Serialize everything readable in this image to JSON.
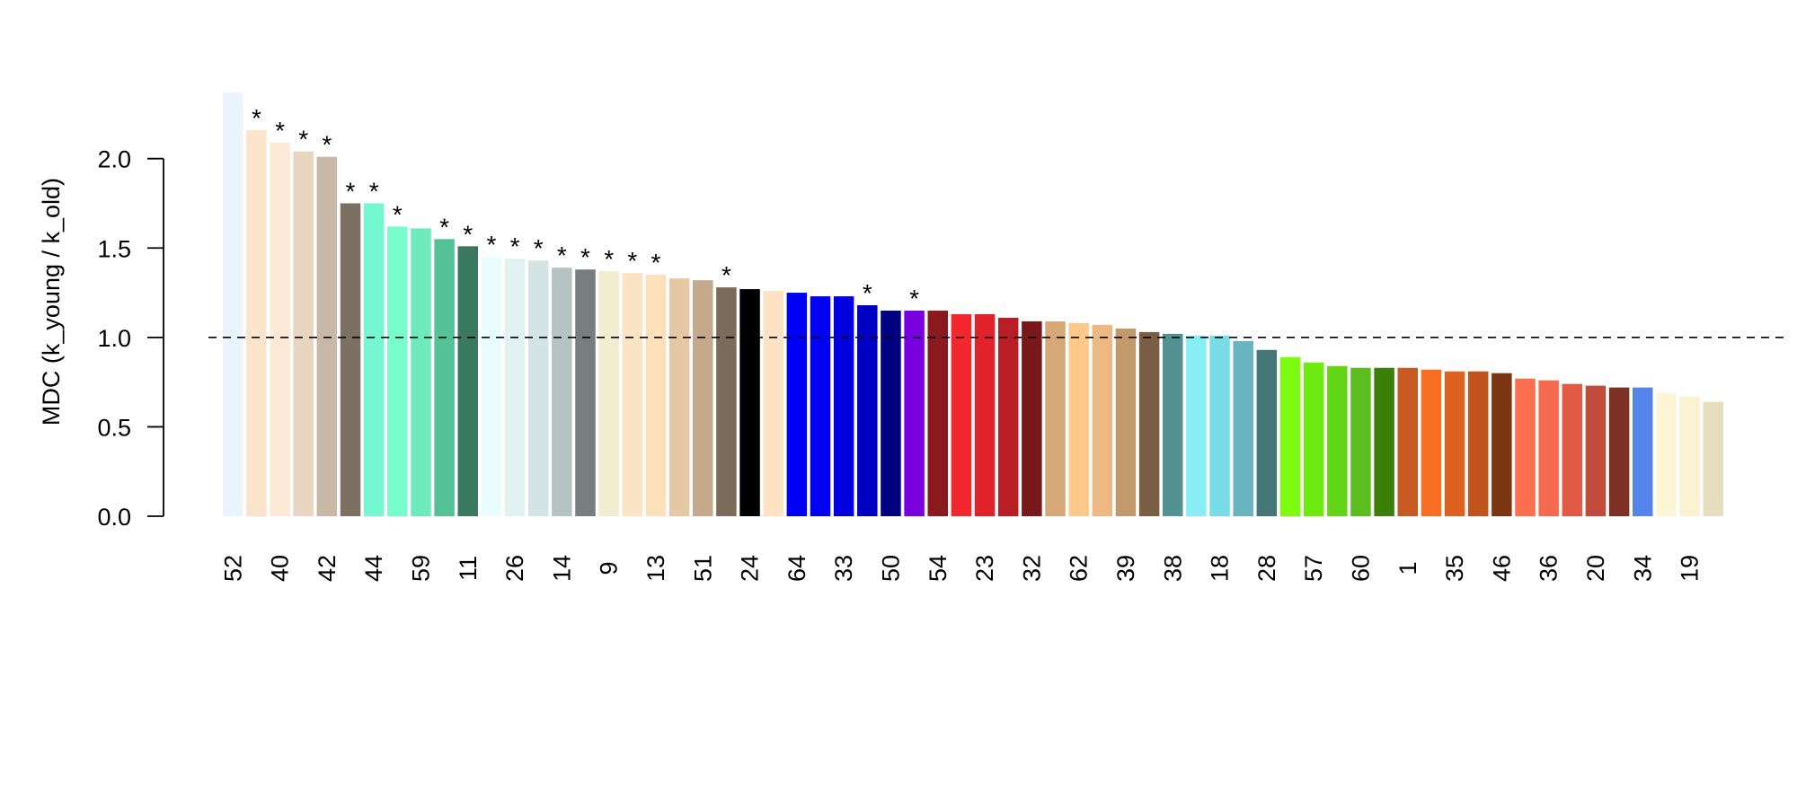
{
  "chart_data": {
    "type": "bar",
    "ylabel": "MDC (k_young / k_old)",
    "ylim": [
      0,
      2.35
    ],
    "yticks": [
      "0.0",
      "0.5",
      "1.0",
      "1.5",
      "2.0"
    ],
    "reference_line": {
      "y": 1.0,
      "style": "dashed"
    },
    "grid": false,
    "significance_marker": "*",
    "bars": [
      {
        "label": "52",
        "value": 2.37,
        "color": "#EAF4FD",
        "sig": false
      },
      {
        "label": "",
        "value": 2.16,
        "color": "#FCE4CA",
        "sig": true
      },
      {
        "label": "40",
        "value": 2.09,
        "color": "#FDEAD6",
        "sig": true
      },
      {
        "label": "",
        "value": 2.04,
        "color": "#E8D5C0",
        "sig": true
      },
      {
        "label": "42",
        "value": 2.01,
        "color": "#C9B8A5",
        "sig": true
      },
      {
        "label": "",
        "value": 1.75,
        "color": "#7C7063",
        "sig": true
      },
      {
        "label": "44",
        "value": 1.75,
        "color": "#73F8CF",
        "sig": true
      },
      {
        "label": "",
        "value": 1.62,
        "color": "#77FCCB",
        "sig": true
      },
      {
        "label": "59",
        "value": 1.61,
        "color": "#6DEBBF",
        "sig": false
      },
      {
        "label": "",
        "value": 1.55,
        "color": "#55C196",
        "sig": true
      },
      {
        "label": "11",
        "value": 1.51,
        "color": "#3A7860",
        "sig": true
      },
      {
        "label": "",
        "value": 1.45,
        "color": "#EAFDFE",
        "sig": true
      },
      {
        "label": "26",
        "value": 1.44,
        "color": "#E2F2F3",
        "sig": true
      },
      {
        "label": "",
        "value": 1.43,
        "color": "#D4E4E5",
        "sig": true
      },
      {
        "label": "14",
        "value": 1.39,
        "color": "#B5C3C3",
        "sig": true
      },
      {
        "label": "",
        "value": 1.38,
        "color": "#777E7E",
        "sig": true
      },
      {
        "label": "9",
        "value": 1.37,
        "color": "#F2ECD1",
        "sig": true
      },
      {
        "label": "",
        "value": 1.36,
        "color": "#FBE3C5",
        "sig": true
      },
      {
        "label": "13",
        "value": 1.35,
        "color": "#FDDFBA",
        "sig": true
      },
      {
        "label": "",
        "value": 1.33,
        "color": "#E5C9A5",
        "sig": false
      },
      {
        "label": "51",
        "value": 1.32,
        "color": "#C4AA8B",
        "sig": false
      },
      {
        "label": "",
        "value": 1.28,
        "color": "#7A6B5A",
        "sig": true
      },
      {
        "label": "24",
        "value": 1.27,
        "color": "#000000",
        "sig": false
      },
      {
        "label": "",
        "value": 1.26,
        "color": "#FDE3C3",
        "sig": false
      },
      {
        "label": "64",
        "value": 1.25,
        "color": "#0000F6",
        "sig": false
      },
      {
        "label": "",
        "value": 1.23,
        "color": "#0000F2",
        "sig": false
      },
      {
        "label": "33",
        "value": 1.23,
        "color": "#0000DE",
        "sig": false
      },
      {
        "label": "",
        "value": 1.18,
        "color": "#0000C4",
        "sig": true
      },
      {
        "label": "50",
        "value": 1.15,
        "color": "#000080",
        "sig": false
      },
      {
        "label": "",
        "value": 1.15,
        "color": "#7A00E0",
        "sig": true
      },
      {
        "label": "54",
        "value": 1.15,
        "color": "#8B1A1E",
        "sig": false
      },
      {
        "label": "",
        "value": 1.13,
        "color": "#F4262E",
        "sig": false
      },
      {
        "label": "23",
        "value": 1.13,
        "color": "#E0222A",
        "sig": false
      },
      {
        "label": "",
        "value": 1.11,
        "color": "#B81E24",
        "sig": false
      },
      {
        "label": "32",
        "value": 1.09,
        "color": "#78181A",
        "sig": false
      },
      {
        "label": "",
        "value": 1.09,
        "color": "#D6A878",
        "sig": false
      },
      {
        "label": "62",
        "value": 1.08,
        "color": "#FCC98B",
        "sig": false
      },
      {
        "label": "",
        "value": 1.07,
        "color": "#EEB883",
        "sig": false
      },
      {
        "label": "39",
        "value": 1.05,
        "color": "#C19A6C",
        "sig": false
      },
      {
        "label": "",
        "value": 1.03,
        "color": "#7A5E43",
        "sig": false
      },
      {
        "label": "38",
        "value": 1.02,
        "color": "#539292",
        "sig": false
      },
      {
        "label": "",
        "value": 1.01,
        "color": "#88EEF6",
        "sig": false
      },
      {
        "label": "18",
        "value": 1.01,
        "color": "#78DDE6",
        "sig": false
      },
      {
        "label": "",
        "value": 0.98,
        "color": "#68B4C0",
        "sig": false
      },
      {
        "label": "28",
        "value": 0.93,
        "color": "#457677",
        "sig": false
      },
      {
        "label": "",
        "value": 0.89,
        "color": "#7CFA10",
        "sig": false
      },
      {
        "label": "57",
        "value": 0.86,
        "color": "#6DEB10",
        "sig": false
      },
      {
        "label": "",
        "value": 0.84,
        "color": "#64D416",
        "sig": false
      },
      {
        "label": "60",
        "value": 0.83,
        "color": "#5CBD1E",
        "sig": false
      },
      {
        "label": "",
        "value": 0.83,
        "color": "#3C7E0A",
        "sig": false
      },
      {
        "label": "1",
        "value": 0.83,
        "color": "#C75A20",
        "sig": false
      },
      {
        "label": "",
        "value": 0.82,
        "color": "#F96F22",
        "sig": false
      },
      {
        "label": "35",
        "value": 0.81,
        "color": "#DD6220",
        "sig": false
      },
      {
        "label": "",
        "value": 0.81,
        "color": "#C0541C",
        "sig": false
      },
      {
        "label": "46",
        "value": 0.8,
        "color": "#7A3513",
        "sig": false
      },
      {
        "label": "",
        "value": 0.77,
        "color": "#FC6E4E",
        "sig": false
      },
      {
        "label": "36",
        "value": 0.76,
        "color": "#F56A4C",
        "sig": false
      },
      {
        "label": "",
        "value": 0.74,
        "color": "#E05A44",
        "sig": false
      },
      {
        "label": "20",
        "value": 0.73,
        "color": "#C24A3A",
        "sig": false
      },
      {
        "label": "",
        "value": 0.72,
        "color": "#7E3024",
        "sig": false
      },
      {
        "label": "34",
        "value": 0.72,
        "color": "#5485EA",
        "sig": false
      },
      {
        "label": "",
        "value": 0.69,
        "color": "#FDF6D6",
        "sig": false
      },
      {
        "label": "19",
        "value": 0.67,
        "color": "#FBF2D2",
        "sig": false
      },
      {
        "label": "",
        "value": 0.64,
        "color": "#E6DEBC",
        "sig": false
      }
    ]
  }
}
